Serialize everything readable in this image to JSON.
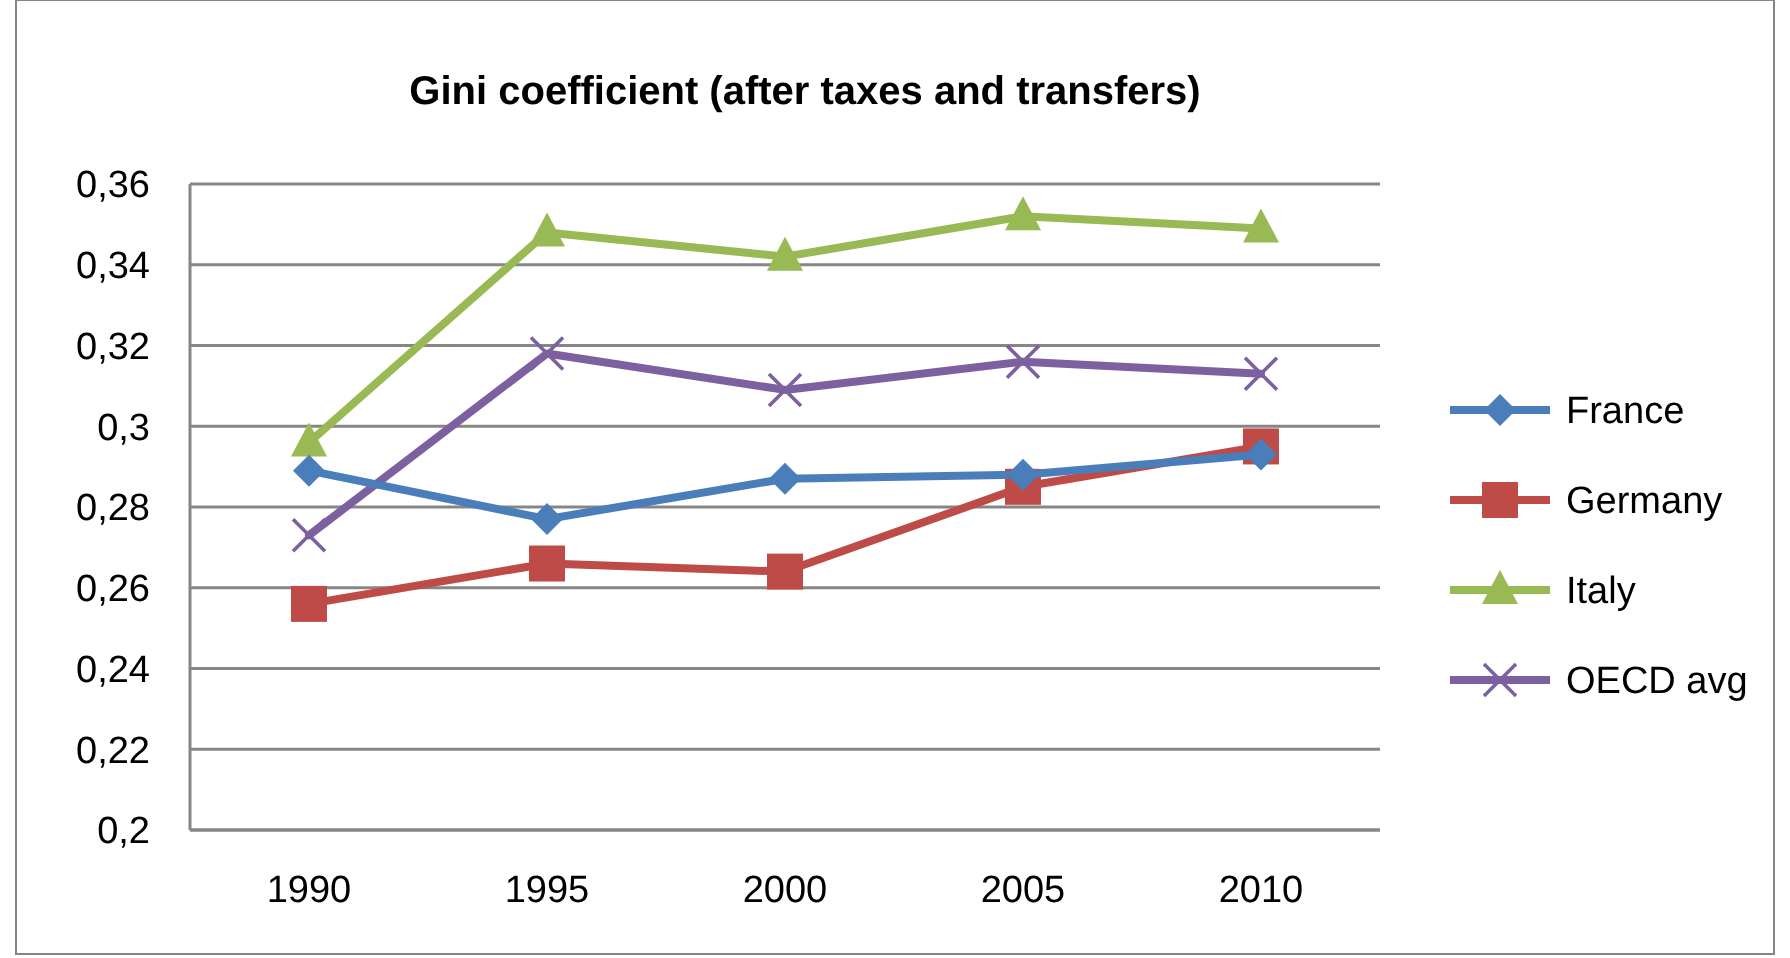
{
  "chart_data": {
    "type": "line",
    "title": "Gini coefficient (after taxes and transfers)",
    "categories": [
      "1990",
      "1995",
      "2000",
      "2005",
      "2010"
    ],
    "series": [
      {
        "name": "France",
        "color": "#4a7ebb",
        "marker": "diamond",
        "values": [
          0.289,
          0.277,
          0.287,
          0.288,
          0.293
        ]
      },
      {
        "name": "Germany",
        "color": "#be4b48",
        "marker": "square",
        "values": [
          0.256,
          0.266,
          0.264,
          0.285,
          0.295
        ]
      },
      {
        "name": "Italy",
        "color": "#98b954",
        "marker": "triangle",
        "values": [
          0.296,
          0.348,
          0.342,
          0.352,
          0.349
        ]
      },
      {
        "name": "OECD avg",
        "color": "#7d60a0",
        "marker": "cross",
        "values": [
          0.273,
          0.318,
          0.309,
          0.316,
          0.313
        ]
      }
    ],
    "ylim": [
      0.2,
      0.36
    ],
    "yticks": [
      {
        "value": 0.2,
        "label": "0,2"
      },
      {
        "value": 0.22,
        "label": "0,22"
      },
      {
        "value": 0.24,
        "label": "0,24"
      },
      {
        "value": 0.26,
        "label": "0,26"
      },
      {
        "value": 0.28,
        "label": "0,28"
      },
      {
        "value": 0.3,
        "label": "0,3"
      },
      {
        "value": 0.32,
        "label": "0,32"
      },
      {
        "value": 0.34,
        "label": "0,34"
      },
      {
        "value": 0.36,
        "label": "0,36"
      }
    ],
    "grid": "y",
    "legend": "right"
  }
}
